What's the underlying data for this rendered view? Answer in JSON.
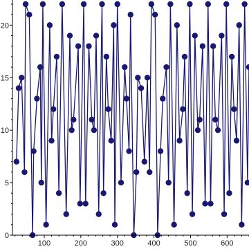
{
  "chart_data": {
    "type": "line",
    "title": "",
    "xlabel": "",
    "ylabel": "",
    "xlim": [
      13,
      660
    ],
    "ylim": [
      0,
      22
    ],
    "x_ticks": [
      100,
      200,
      300,
      400,
      500,
      600
    ],
    "y_ticks": [
      0,
      5,
      10,
      15,
      20
    ],
    "x_tick_labels": [
      "100",
      "200",
      "300",
      "400",
      "500",
      "600"
    ],
    "y_tick_labels": [
      "0",
      "5",
      "10",
      "15",
      "20"
    ],
    "grid": false,
    "series": [
      {
        "color": "#191970",
        "x": [
          24,
          30,
          38,
          46,
          49,
          59,
          68,
          71,
          80,
          89,
          92,
          96,
          105,
          115,
          120,
          125,
          134,
          140,
          149,
          160,
          170,
          175,
          180,
          193,
          198,
          208,
          213,
          222,
          230,
          236,
          242,
          249,
          258,
          262,
          270,
          275,
          283,
          290,
          293,
          300,
          310,
          320,
          325,
          332,
          336,
          345,
          352,
          356,
          365,
          374,
          382,
          388,
          393,
          403,
          410,
          418,
          424,
          434,
          440,
          445,
          455,
          463,
          470,
          479,
          484,
          491,
          498,
          505,
          512,
          520,
          525,
          533,
          540,
          548,
          555,
          562,
          568,
          575,
          585,
          592,
          598,
          606,
          613,
          619,
          626,
          633,
          640,
          648,
          656,
          660
        ],
        "values": [
          7,
          14,
          15,
          6,
          22,
          21,
          0,
          8,
          13,
          16,
          5,
          22,
          1,
          20,
          9,
          12,
          17,
          4,
          22,
          2,
          19,
          10,
          11,
          18,
          3,
          22,
          3,
          18,
          11,
          10,
          19,
          2,
          22,
          4,
          17,
          12,
          9,
          20,
          1,
          22,
          5,
          16,
          13,
          8,
          21,
          0,
          6,
          15,
          14,
          7,
          15,
          6,
          22,
          21,
          0,
          8,
          13,
          16,
          5,
          22,
          1,
          20,
          9,
          12,
          17,
          4,
          22,
          2,
          19,
          10,
          11,
          18,
          3,
          22,
          3,
          18,
          11,
          10,
          19,
          2,
          22,
          4,
          17,
          12,
          9,
          20,
          1,
          22,
          5,
          16
        ]
      }
    ]
  }
}
